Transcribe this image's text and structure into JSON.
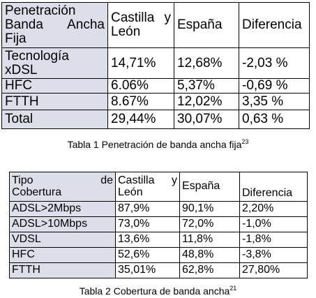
{
  "table1": {
    "headers": {
      "col1_line1": "Penetración",
      "col1_line2": "Banda Ancha",
      "col1_line3": "Fija",
      "col2_line1": "Castilla y",
      "col2_line2": "León",
      "col3": "España",
      "col4": "Diferencia"
    },
    "rows": [
      {
        "label_line1": "Tecnología",
        "label_line2": "xDSL",
        "castilla": "14,71%",
        "espana": "12,68%",
        "diferencia": "-2,03 %"
      },
      {
        "label_line1": "HFC",
        "label_line2": "",
        "castilla": "6.06%",
        "espana": "5,37%",
        "diferencia": "-0,69 %"
      },
      {
        "label_line1": "FTTH",
        "label_line2": "",
        "castilla": "8.67%",
        "espana": "12,02%",
        "diferencia": "3,35 %"
      },
      {
        "label_line1": "Total",
        "label_line2": "",
        "castilla": "29,44%",
        "espana": "30,07%",
        "diferencia": "0,63 %"
      }
    ],
    "caption": "Tabla 1 Penetración de banda ancha fija",
    "caption_sup": "23"
  },
  "table2": {
    "headers": {
      "col1_line1": "Tipo de",
      "col1_line2": "Cobertura",
      "col2_line1": "Castilla y",
      "col2_line2": "León",
      "col3": "España",
      "col4": "Diferencia"
    },
    "rows": [
      {
        "label": "ADSL>2Mbps",
        "castilla": "87,9%",
        "espana": "90,1%",
        "diferencia": "2,20%"
      },
      {
        "label": "ADSL>10Mbps",
        "castilla": "73,0%",
        "espana": "72,0%",
        "diferencia": "-1,0%"
      },
      {
        "label": "VDSL",
        "castilla": "13,6%",
        "espana": "11,8%",
        "diferencia": "-1,8%"
      },
      {
        "label": "HFC",
        "castilla": "52,6%",
        "espana": "48,8%",
        "diferencia": "-3,8%"
      },
      {
        "label": "FTTH",
        "castilla": "35,01%",
        "espana": "62,8%",
        "diferencia": "27,80%"
      }
    ],
    "caption": "Tabla 2 Cobertura de banda ancha",
    "caption_sup": "21"
  }
}
